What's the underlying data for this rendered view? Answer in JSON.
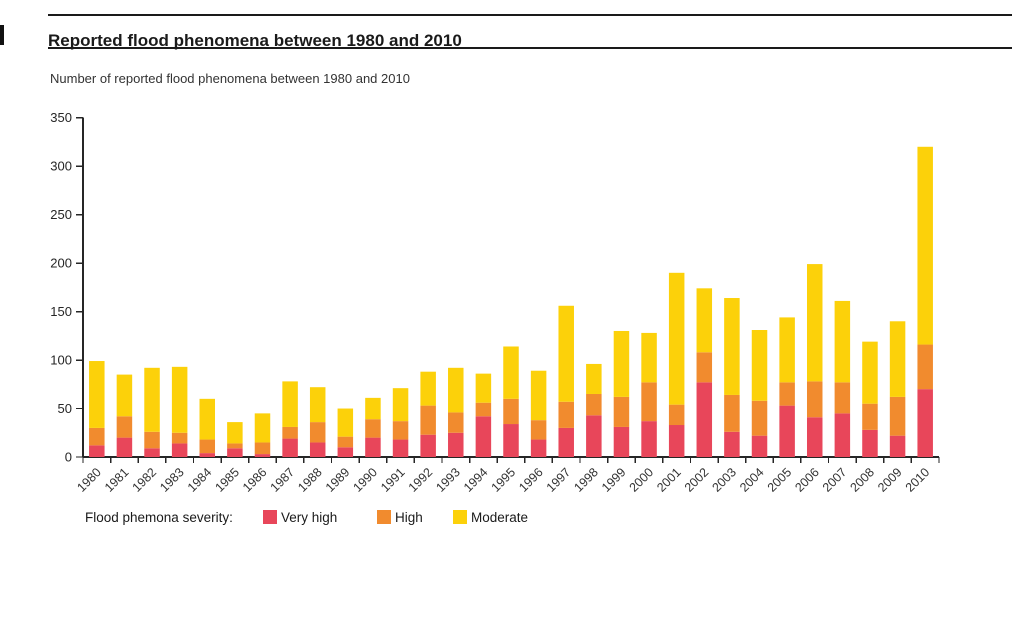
{
  "page": {
    "title": "Reported flood phenomena between 1980 and 2010",
    "subtitle": "Number of reported flood phenomena between 1980 and 2010"
  },
  "legend": {
    "label": "Flood phemona severity:",
    "items": [
      {
        "name": "Very high",
        "color": "#E8465A"
      },
      {
        "name": "High",
        "color": "#F18B2E"
      },
      {
        "name": "Moderate",
        "color": "#FCD10A"
      }
    ]
  },
  "colors": {
    "axis": "#262626",
    "axis_text": "#333333",
    "very_high": "#E8465A",
    "high": "#F18B2E",
    "moderate": "#FCD10A"
  },
  "chart_data": {
    "type": "bar",
    "stacked": true,
    "title": "Number of reported flood phenomena between 1980 and 2010",
    "xlabel": "",
    "ylabel": "",
    "ylim": [
      0,
      350
    ],
    "ytick_step": 50,
    "grid": false,
    "legend_position": "bottom",
    "categories": [
      "1980",
      "1981",
      "1982",
      "1983",
      "1984",
      "1985",
      "1986",
      "1987",
      "1988",
      "1989",
      "1990",
      "1991",
      "1992",
      "1993",
      "1994",
      "1995",
      "1996",
      "1997",
      "1998",
      "1999",
      "2000",
      "2001",
      "2002",
      "2003",
      "2004",
      "2005",
      "2006",
      "2007",
      "2008",
      "2009",
      "2010"
    ],
    "series": [
      {
        "name": "Very high",
        "color": "#E8465A",
        "values": [
          12,
          20,
          9,
          14,
          4,
          9,
          3,
          19,
          15,
          10,
          20,
          18,
          23,
          25,
          42,
          34,
          18,
          30,
          43,
          31,
          37,
          33,
          77,
          26,
          22,
          53,
          41,
          45,
          28,
          22,
          70
        ]
      },
      {
        "name": "High",
        "color": "#F18B2E",
        "values": [
          18,
          22,
          17,
          11,
          14,
          5,
          12,
          12,
          21,
          11,
          19,
          19,
          30,
          21,
          14,
          26,
          20,
          27,
          22,
          31,
          40,
          21,
          31,
          38,
          36,
          24,
          37,
          32,
          27,
          40,
          46
        ]
      },
      {
        "name": "Moderate",
        "color": "#FCD10A",
        "values": [
          69,
          43,
          66,
          68,
          42,
          22,
          30,
          47,
          36,
          29,
          22,
          34,
          35,
          46,
          30,
          54,
          51,
          99,
          31,
          68,
          51,
          136,
          66,
          100,
          73,
          67,
          121,
          84,
          64,
          78,
          204
        ]
      }
    ]
  }
}
